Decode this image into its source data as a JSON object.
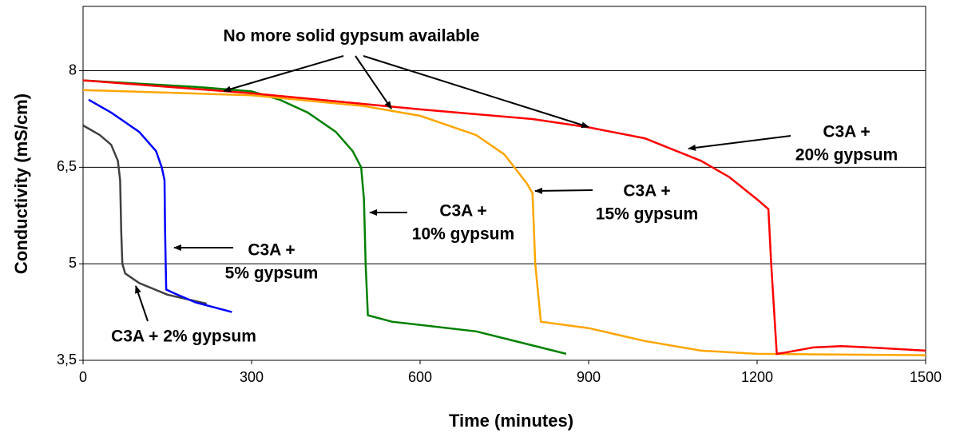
{
  "chart_data": {
    "type": "line",
    "xlabel": "Time (minutes)",
    "ylabel": "Conductivity (mS/cm)",
    "xlim": [
      0,
      1500
    ],
    "xticks": [
      0,
      300,
      600,
      900,
      1200,
      1500
    ],
    "ylim": [
      3.5,
      9
    ],
    "yticks": [
      {
        "value": 3.5,
        "label": "3,5"
      },
      5,
      {
        "value": 6.5,
        "label": "6,5"
      },
      8
    ],
    "grid": true,
    "series": [
      {
        "color": "#404040",
        "x": [
          0,
          10,
          30,
          50,
          62,
          66,
          68,
          70,
          75,
          100,
          150,
          220
        ],
        "values": [
          7.15,
          7.1,
          7.0,
          6.85,
          6.6,
          6.3,
          5.5,
          5.0,
          4.85,
          4.7,
          4.52,
          4.38
        ]
      },
      {
        "color": "#0000ff",
        "x": [
          10,
          50,
          100,
          130,
          140,
          145,
          146,
          148,
          160,
          200,
          265
        ],
        "values": [
          7.55,
          7.35,
          7.05,
          6.75,
          6.5,
          6.3,
          5.5,
          4.6,
          4.55,
          4.4,
          4.25
        ]
      },
      {
        "color": "#008000",
        "x": [
          0,
          100,
          200,
          300,
          350,
          400,
          450,
          480,
          495,
          500,
          503,
          507,
          550,
          700,
          860
        ],
        "values": [
          7.85,
          7.8,
          7.75,
          7.68,
          7.55,
          7.35,
          7.05,
          6.75,
          6.5,
          6.0,
          5.0,
          4.2,
          4.1,
          3.95,
          3.6
        ]
      },
      {
        "color": "#ffa500",
        "x": [
          0,
          300,
          500,
          600,
          700,
          750,
          790,
          800,
          805,
          815,
          900,
          1000,
          1100,
          1200,
          1500
        ],
        "values": [
          7.7,
          7.62,
          7.45,
          7.3,
          7.0,
          6.7,
          6.25,
          6.1,
          5.0,
          4.1,
          4.0,
          3.8,
          3.65,
          3.6,
          3.58
        ]
      },
      {
        "color": "#ff0000",
        "x": [
          0,
          300,
          600,
          800,
          900,
          1000,
          1100,
          1150,
          1200,
          1220,
          1225,
          1235,
          1250,
          1300,
          1350,
          1400,
          1500
        ],
        "values": [
          7.85,
          7.65,
          7.4,
          7.25,
          7.12,
          6.95,
          6.6,
          6.35,
          6.0,
          5.85,
          5.0,
          3.6,
          3.62,
          3.7,
          3.72,
          3.7,
          3.65
        ]
      }
    ],
    "annotations": [
      [
        "No more solid gypsum available"
      ],
      [
        "C3A +",
        "20% gypsum"
      ],
      [
        "C3A +",
        "15% gypsum"
      ],
      [
        "C3A +",
        "10% gypsum"
      ],
      [
        "C3A +",
        "5% gypsum"
      ],
      [
        "C3A + 2% gypsum"
      ]
    ]
  }
}
